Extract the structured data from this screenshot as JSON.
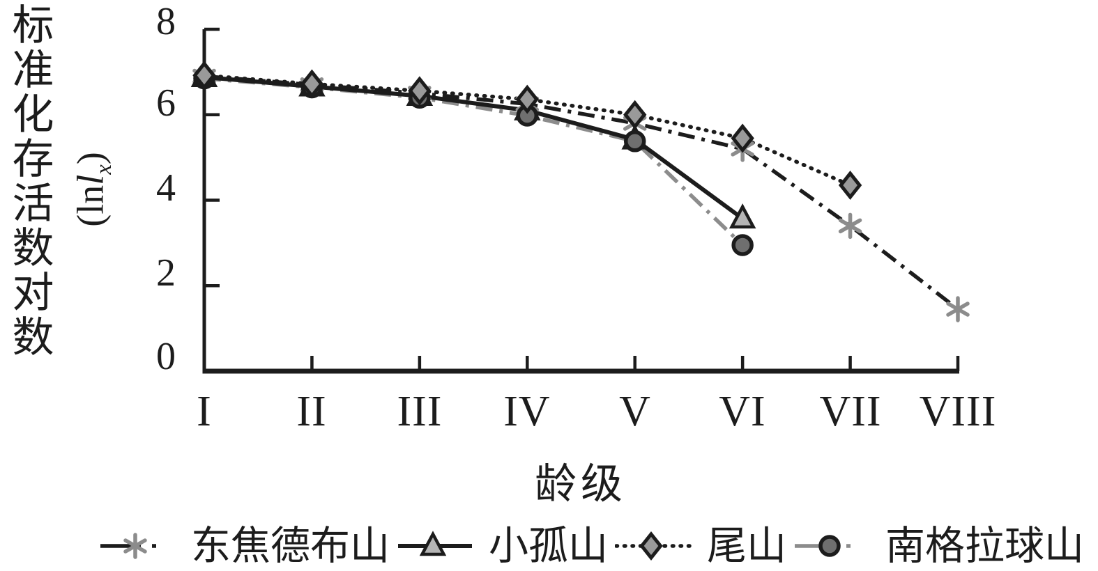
{
  "chart_data": {
    "type": "line",
    "title": "",
    "xlabel": "龄级",
    "ylabel": "标准化存活数对数",
    "ylabel_math": {
      "open": "(ln",
      "var": "l",
      "sub": "x",
      "close": ")"
    },
    "categories": [
      "I",
      "II",
      "III",
      "IV",
      "V",
      "VI",
      "VII",
      "VIII"
    ],
    "y_ticks": [
      "8",
      "6",
      "4",
      "2",
      "0"
    ],
    "ylim": [
      0,
      8
    ],
    "grid": false,
    "legend_position": "bottom",
    "colors": {
      "black": "#1c1c1c",
      "gray": "#8c8c8c"
    },
    "series": [
      {
        "name": "东焦德布山",
        "line_style": "dashdot",
        "line_color": "#1c1c1c",
        "marker": "asterisk",
        "marker_color": "#8c8c8c",
        "marker_edge": "#8c8c8c",
        "values": [
          6.9,
          6.7,
          6.5,
          6.25,
          5.8,
          5.2,
          3.4,
          1.45
        ]
      },
      {
        "name": "小孤山",
        "line_style": "solid",
        "line_color": "#1c1c1c",
        "marker": "triangle",
        "marker_color": "#b5b5b5",
        "marker_edge": "#1c1c1c",
        "values": [
          6.88,
          6.66,
          6.44,
          6.1,
          5.42,
          3.57,
          null,
          null
        ]
      },
      {
        "name": "尾山",
        "line_style": "dotted",
        "line_color": "#1c1c1c",
        "marker": "diamond",
        "marker_color": "#9a9a9a",
        "marker_edge": "#1c1c1c",
        "values": [
          6.92,
          6.72,
          6.56,
          6.36,
          6.0,
          5.45,
          4.35,
          null
        ]
      },
      {
        "name": "南格拉球山",
        "line_style": "dashdot",
        "line_color": "#8c8c8c",
        "marker": "circle",
        "marker_color": "#6f6f6f",
        "marker_edge": "#1c1c1c",
        "values": [
          6.85,
          6.64,
          6.4,
          5.98,
          5.38,
          2.95,
          null,
          null
        ]
      }
    ]
  }
}
